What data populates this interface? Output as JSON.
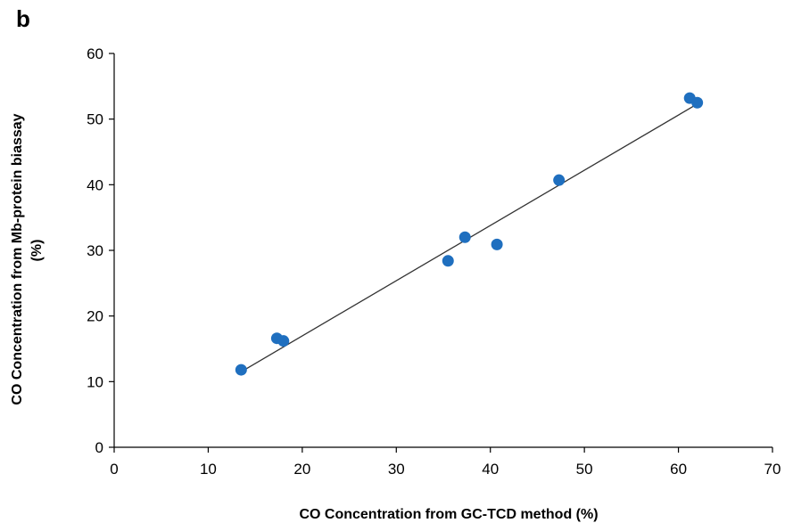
{
  "panel_label": "b",
  "chart_data": {
    "type": "scatter",
    "title": "",
    "xlabel": "CO Concentration from GC-TCD method (%)",
    "ylabel_line1": "CO Concentration from Mb-protein biassay",
    "ylabel_line2": "(%)",
    "xlim": [
      0,
      70
    ],
    "ylim": [
      0,
      60
    ],
    "xticks": [
      0,
      10,
      20,
      30,
      40,
      50,
      60,
      70
    ],
    "yticks": [
      0,
      10,
      20,
      30,
      40,
      50,
      60
    ],
    "grid": false,
    "points": [
      {
        "x": 13.5,
        "y": 11.8
      },
      {
        "x": 17.3,
        "y": 16.6
      },
      {
        "x": 18.0,
        "y": 16.2
      },
      {
        "x": 35.5,
        "y": 28.4
      },
      {
        "x": 37.3,
        "y": 32.0
      },
      {
        "x": 40.7,
        "y": 30.9
      },
      {
        "x": 47.3,
        "y": 40.7
      },
      {
        "x": 61.2,
        "y": 53.2
      },
      {
        "x": 62.0,
        "y": 52.5
      }
    ],
    "trendline": {
      "x": [
        13.5,
        62.0
      ],
      "y": [
        11.5,
        52.3
      ]
    },
    "colors": {
      "points": "#1f6fbf",
      "trendline": "#333333",
      "axes": "#000000"
    }
  }
}
